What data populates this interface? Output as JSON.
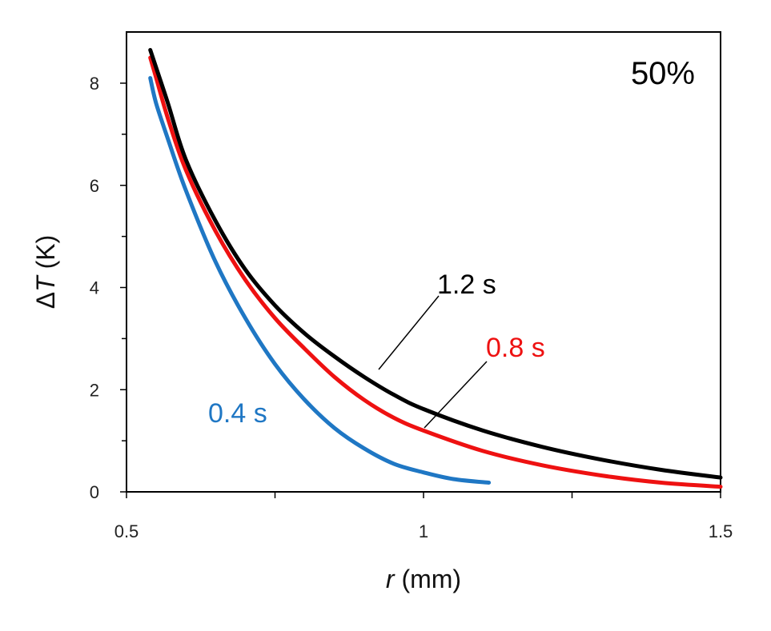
{
  "chart_data": {
    "type": "line",
    "annotation": "50%",
    "xlabel": {
      "var": "r",
      "unit": " (mm)"
    },
    "ylabel": {
      "prefix": "Δ",
      "var": "T",
      "unit": " (K)"
    },
    "xlim": [
      0.5,
      1.5
    ],
    "ylim": [
      0,
      9
    ],
    "xticks": [
      "0.5",
      "1",
      "1.5"
    ],
    "yticks": [
      "0",
      "2",
      "4",
      "6",
      "8"
    ],
    "grid": false,
    "series": [
      {
        "name": "0.4 s",
        "color": "#1f77c4",
        "x": [
          0.54,
          0.55,
          0.57,
          0.6,
          0.65,
          0.7,
          0.75,
          0.8,
          0.85,
          0.9,
          0.95,
          1.0,
          1.05,
          1.11
        ],
        "y": [
          8.1,
          7.6,
          6.9,
          5.9,
          4.5,
          3.4,
          2.5,
          1.8,
          1.25,
          0.85,
          0.55,
          0.38,
          0.25,
          0.18
        ]
      },
      {
        "name": "0.8 s",
        "color": "#ee1111",
        "x": [
          0.54,
          0.55,
          0.57,
          0.6,
          0.65,
          0.7,
          0.75,
          0.8,
          0.85,
          0.9,
          0.95,
          1.0,
          1.1,
          1.2,
          1.3,
          1.4,
          1.5
        ],
        "y": [
          8.5,
          8.1,
          7.3,
          6.3,
          5.1,
          4.15,
          3.4,
          2.8,
          2.25,
          1.8,
          1.45,
          1.2,
          0.8,
          0.52,
          0.32,
          0.18,
          0.1
        ]
      },
      {
        "name": "1.2 s",
        "color": "#000000",
        "x": [
          0.54,
          0.55,
          0.57,
          0.6,
          0.65,
          0.7,
          0.75,
          0.8,
          0.85,
          0.9,
          0.95,
          1.0,
          1.1,
          1.2,
          1.3,
          1.4,
          1.5
        ],
        "y": [
          8.65,
          8.3,
          7.6,
          6.5,
          5.3,
          4.35,
          3.65,
          3.1,
          2.65,
          2.25,
          1.9,
          1.62,
          1.2,
          0.88,
          0.63,
          0.43,
          0.28
        ]
      }
    ]
  }
}
